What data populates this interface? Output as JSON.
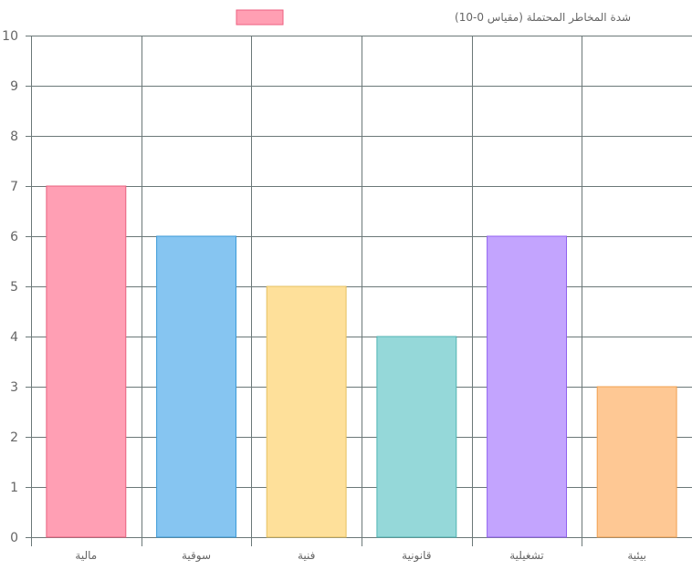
{
  "chart_data": {
    "type": "bar",
    "legend_position": "top",
    "grid": true,
    "series": [
      {
        "name": "شدة المخاطر المحتملة (مقياس 0-10)",
        "values": [
          7,
          6,
          5,
          4,
          6,
          3
        ]
      }
    ],
    "categories": [
      "مالية",
      "سوقية",
      "فنية",
      "قانونية",
      "تشغيلية",
      "بيئية"
    ],
    "ylim": [
      0,
      10
    ],
    "yticks": [
      0,
      1,
      2,
      3,
      4,
      5,
      6,
      7,
      8,
      9,
      10
    ],
    "legend_color": "#ff9fb3",
    "legend_border": "#ee6080",
    "bar_colors": [
      "#ff9fb4",
      "#86c5f1",
      "#fee09a",
      "#95d8d9",
      "#c3a4fe",
      "#fec894"
    ],
    "bar_borders": [
      "#e8607e",
      "#3b9ad8",
      "#e5c060",
      "#4fb3b3",
      "#9061f0",
      "#f0a050"
    ],
    "gridline_color": "#6b7878",
    "text_color": "#666666"
  }
}
